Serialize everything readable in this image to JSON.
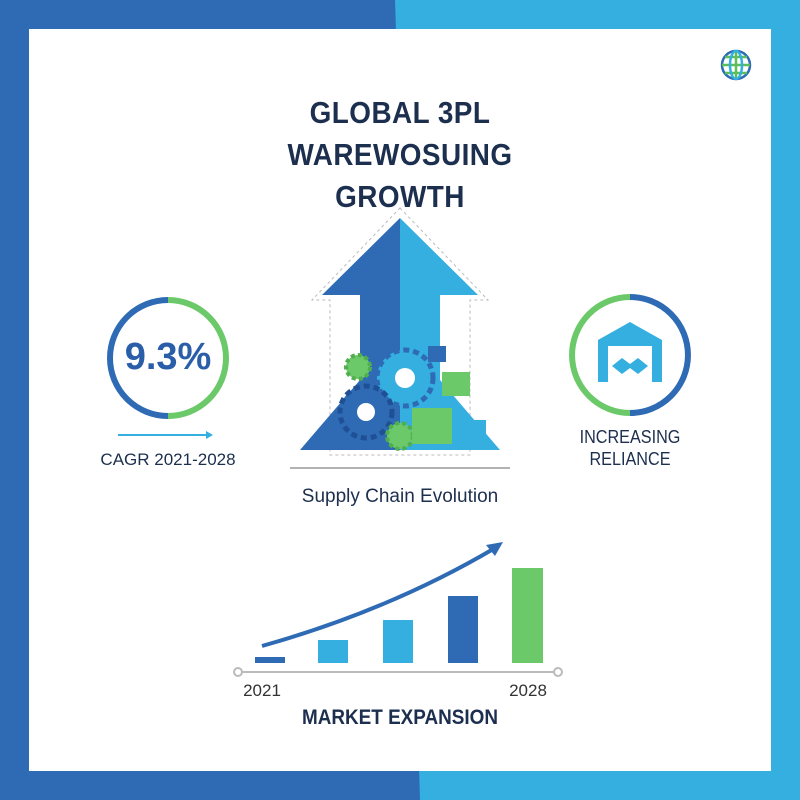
{
  "header": {
    "title": "GLOBAL 3PL WAREWOSUING GROWTH"
  },
  "stats": {
    "cagr": {
      "value": "9.3%",
      "label": "CAGR 2021-2028"
    },
    "reliance": {
      "label": "INCREASING RELIANCE"
    }
  },
  "center": {
    "caption": "Supply Chain Evolution"
  },
  "market": {
    "start_year": "2021",
    "end_year": "2028",
    "label": "MARKET EXPANSION"
  }
}
